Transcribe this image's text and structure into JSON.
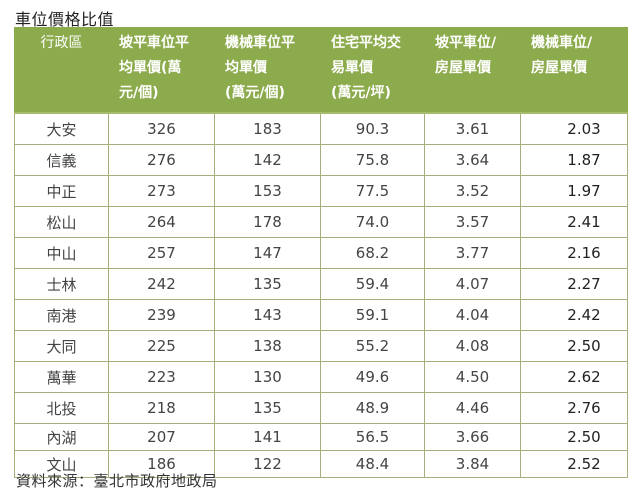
{
  "title": "車位價格比值",
  "table": {
    "headers": [
      [
        "行政區"
      ],
      [
        "坡平車位平",
        "均單價(萬",
        "元/個)"
      ],
      [
        "機械車位平",
        "均單價",
        "(萬元/個)"
      ],
      [
        "住宅平均交",
        "易單價",
        "(萬元/坪)"
      ],
      [
        "坡平車位/",
        "房屋單價"
      ],
      [
        "機械車位/",
        "房屋單價"
      ]
    ],
    "rows": [
      [
        "大安",
        "326",
        "183",
        "90.3",
        "3.61",
        "2.03"
      ],
      [
        "信義",
        "276",
        "142",
        "75.8",
        "3.64",
        "1.87"
      ],
      [
        "中正",
        "273",
        "153",
        "77.5",
        "3.52",
        "1.97"
      ],
      [
        "松山",
        "264",
        "178",
        "74.0",
        "3.57",
        "2.41"
      ],
      [
        "中山",
        "257",
        "147",
        "68.2",
        "3.77",
        "2.16"
      ],
      [
        "士林",
        "242",
        "135",
        "59.4",
        "4.07",
        "2.27"
      ],
      [
        "南港",
        "239",
        "143",
        "59.1",
        "4.04",
        "2.42"
      ],
      [
        "大同",
        "225",
        "138",
        "55.2",
        "4.08",
        "2.50"
      ],
      [
        "萬華",
        "223",
        "130",
        "49.6",
        "4.50",
        "2.62"
      ],
      [
        "北投",
        "218",
        "135",
        "48.9",
        "4.46",
        "2.76"
      ],
      [
        "內湖",
        "207",
        "141",
        "56.5",
        "3.66",
        "2.50"
      ],
      [
        "文山",
        "186",
        "122",
        "48.4",
        "3.84",
        "2.52"
      ]
    ]
  },
  "source": "資料來源：臺北市政府地政局",
  "colors": {
    "header_bg": "#8cab4c",
    "border": "#a8ad7c"
  }
}
